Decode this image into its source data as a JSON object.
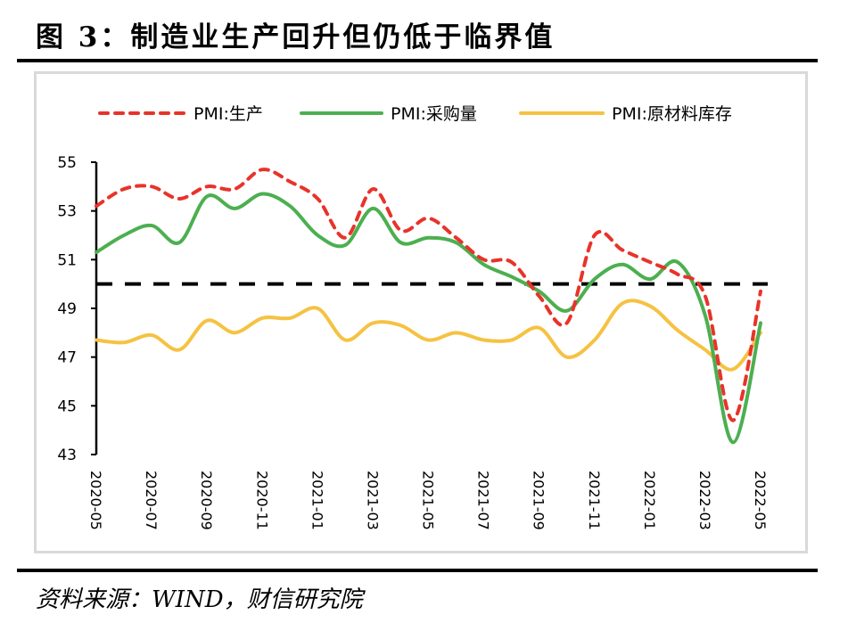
{
  "figure": {
    "title": "图 3：制造业生产回升但仍低于临界值",
    "source": "资料来源：WIND，财信研究院"
  },
  "chart_data": {
    "type": "line",
    "title": "图 3：制造业生产回升但仍低于临界值",
    "xlabel": "",
    "ylabel": "",
    "ylim": [
      43,
      55
    ],
    "yticks": [
      43,
      45,
      47,
      49,
      51,
      53,
      55
    ],
    "ytick_labels": [
      "43",
      "45",
      "47",
      "49",
      "51",
      "53",
      "55"
    ],
    "x": [
      "2020-05",
      "2020-06",
      "2020-07",
      "2020-08",
      "2020-09",
      "2020-10",
      "2020-11",
      "2020-12",
      "2021-01",
      "2021-02",
      "2021-03",
      "2021-04",
      "2021-05",
      "2021-06",
      "2021-07",
      "2021-08",
      "2021-09",
      "2021-10",
      "2021-11",
      "2021-12",
      "2022-01",
      "2022-02",
      "2022-03",
      "2022-04",
      "2022-05"
    ],
    "xtick_labels": [
      "2020-05",
      "2020-07",
      "2020-09",
      "2020-11",
      "2021-01",
      "2021-03",
      "2021-05",
      "2021-07",
      "2021-09",
      "2021-11",
      "2022-01",
      "2022-03",
      "2022-05"
    ],
    "grid": false,
    "legend_position": "top",
    "reference_line": {
      "value": 50,
      "style": "dashed",
      "color": "#000000"
    },
    "series": [
      {
        "name": "PMI:生产",
        "color": "#e8332a",
        "style": "dashed",
        "values": [
          53.2,
          53.9,
          54.0,
          53.5,
          54.0,
          53.9,
          54.7,
          54.2,
          53.5,
          51.9,
          53.9,
          52.2,
          52.7,
          51.9,
          51.0,
          50.9,
          49.5,
          48.4,
          52.0,
          51.4,
          50.9,
          50.4,
          49.5,
          44.4,
          49.7
        ]
      },
      {
        "name": "PMI:采购量",
        "color": "#4caf50",
        "style": "solid",
        "values": [
          51.3,
          52.0,
          52.4,
          51.7,
          53.6,
          53.1,
          53.7,
          53.2,
          52.0,
          51.6,
          53.1,
          51.7,
          51.9,
          51.7,
          50.8,
          50.3,
          49.7,
          48.9,
          50.2,
          50.8,
          50.2,
          50.9,
          48.7,
          43.5,
          48.4
        ]
      },
      {
        "name": "PMI:原材料库存",
        "color": "#f5c242",
        "style": "solid",
        "values": [
          47.7,
          47.6,
          47.9,
          47.3,
          48.5,
          48.0,
          48.6,
          48.6,
          49.0,
          47.7,
          48.4,
          48.3,
          47.7,
          48.0,
          47.7,
          47.7,
          48.2,
          47.0,
          47.7,
          49.2,
          49.1,
          48.1,
          47.3,
          46.5,
          48.0
        ]
      }
    ]
  }
}
